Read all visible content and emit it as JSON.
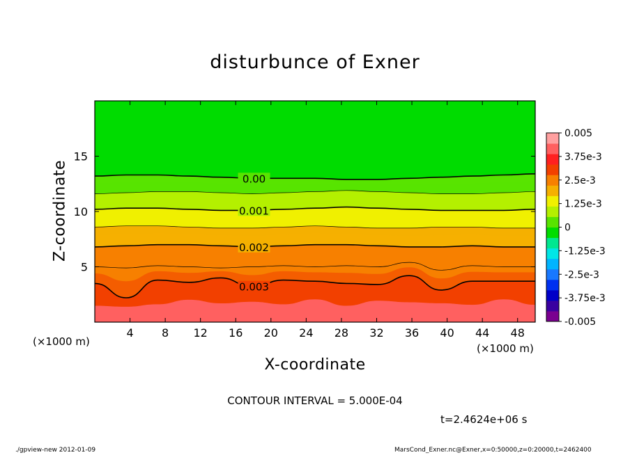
{
  "chart_data": {
    "type": "heatmap",
    "title": "disturbunce of Exner",
    "xlabel": "X-coordinate",
    "ylabel": "Z-coordinate",
    "x_unit_label": "(×1000 m)",
    "y_unit_label": "(×1000 m)",
    "xlim": [
      0,
      50
    ],
    "ylim": [
      0,
      20
    ],
    "x_ticks": [
      4,
      8,
      12,
      16,
      20,
      24,
      28,
      32,
      36,
      40,
      44,
      48
    ],
    "y_ticks": [
      5,
      10,
      15
    ],
    "colorbar": {
      "range": [
        -0.005,
        0.005
      ],
      "tick_labels": [
        "0.005",
        "3.75e-3",
        "2.5e-3",
        "1.25e-3",
        "0",
        "-1.25e-3",
        "-2.5e-3",
        "-3.75e-3",
        "-0.005"
      ],
      "tick_values": [
        0.005,
        0.00375,
        0.0025,
        0.00125,
        0,
        -0.00125,
        -0.0025,
        -0.00375,
        -0.005
      ],
      "levels": 16,
      "colors": [
        "#7a0090",
        "#3a00a0",
        "#0000c8",
        "#0030f0",
        "#1878ff",
        "#00b4ff",
        "#00e6e6",
        "#00e890",
        "#00dc00",
        "#58e400",
        "#b4f000",
        "#f0f000",
        "#f5b000",
        "#f78000",
        "#f24000",
        "#ff2020",
        "#ff6060",
        "#ffa0a0"
      ]
    },
    "contours": [
      {
        "value": 0.0,
        "label": "0.00",
        "z": [
          13.2,
          13.3,
          13.3,
          13.2,
          13.1,
          13.0,
          13.0,
          13.0,
          12.9,
          12.9,
          13.0,
          13.1,
          13.2,
          13.3,
          13.4
        ]
      },
      {
        "value": 0.0005,
        "label": "",
        "z": [
          11.6,
          11.7,
          11.8,
          11.8,
          11.7,
          11.6,
          11.7,
          11.8,
          11.9,
          11.8,
          11.7,
          11.6,
          11.6,
          11.7,
          11.8
        ]
      },
      {
        "value": 0.001,
        "label": "0.001",
        "z": [
          10.2,
          10.3,
          10.3,
          10.2,
          10.1,
          10.1,
          10.2,
          10.3,
          10.4,
          10.3,
          10.2,
          10.1,
          10.1,
          10.1,
          10.2
        ]
      },
      {
        "value": 0.0015,
        "label": "",
        "z": [
          8.6,
          8.7,
          8.7,
          8.6,
          8.5,
          8.5,
          8.6,
          8.7,
          8.6,
          8.5,
          8.5,
          8.6,
          8.6,
          8.5,
          8.5
        ]
      },
      {
        "value": 0.002,
        "label": "0.002",
        "z": [
          6.8,
          6.9,
          7.0,
          7.0,
          6.9,
          6.8,
          6.9,
          7.0,
          7.0,
          6.9,
          6.8,
          6.8,
          6.9,
          6.8,
          6.8
        ]
      },
      {
        "value": 0.0025,
        "label": "",
        "z": [
          5.0,
          4.9,
          5.1,
          5.0,
          4.9,
          5.0,
          5.1,
          5.0,
          5.1,
          5.0,
          5.4,
          4.7,
          5.1,
          5.0,
          5.0
        ]
      },
      {
        "value": 0.003,
        "label": "0.003",
        "z": [
          3.5,
          2.2,
          3.8,
          3.6,
          4.0,
          3.2,
          3.8,
          3.7,
          3.5,
          3.4,
          4.2,
          2.9,
          3.7,
          3.7,
          3.7
        ]
      }
    ],
    "contour_interval_text": "CONTOUR INTERVAL = 5.000E-04",
    "time_text": "t=2.4624e+06 s"
  },
  "footer": {
    "left": "./gpview-new   2012-01-09",
    "right": "MarsCond_Exner.nc@Exner,x=0:50000,z=0:20000,t=2462400"
  }
}
